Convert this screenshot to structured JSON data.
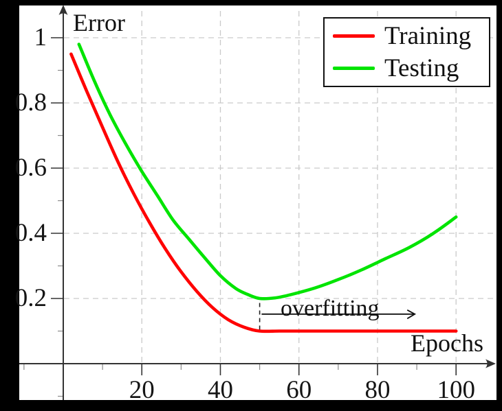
{
  "figure": {
    "error_axis_label": "Error",
    "epochs_axis_label": "Epochs",
    "annotation_label": "overfitting"
  },
  "legend": {
    "position": "top-right",
    "items": [
      {
        "label": "Training",
        "color": "#ff0000"
      },
      {
        "label": "Testing",
        "color": "#00e400"
      }
    ]
  },
  "colors": {
    "training": "#ff0000",
    "testing": "#00e400",
    "grid": "#c9c9c9",
    "axis": "#333333",
    "minor_tick": "#8a8a8a",
    "text": "#111111",
    "surface": "#ffffff",
    "frame": "#000000"
  },
  "chart_data": {
    "type": "line",
    "title": "",
    "xlabel": "Epochs",
    "ylabel": "Error",
    "xlim": [
      -11,
      110
    ],
    "ylim": [
      -0.11,
      1.1
    ],
    "grid": "dashed major",
    "legend_position": "top-right",
    "x_ticks_major": [
      20,
      40,
      60,
      80,
      100
    ],
    "x_tick_labels": [
      "20",
      "40",
      "60",
      "80",
      "100"
    ],
    "x_ticks_minor": [
      -10,
      10,
      30,
      50,
      70,
      90
    ],
    "y_ticks_major": [
      0.2,
      0.4,
      0.6,
      0.8,
      1
    ],
    "y_tick_labels": [
      "0.2",
      "0.4",
      "0.6",
      "0.8",
      "1"
    ],
    "y_ticks_minor": [
      -0.1,
      0.1,
      0.3,
      0.5,
      0.7,
      0.9
    ],
    "series": [
      {
        "name": "Training",
        "color": "#ff0000",
        "points": [
          [
            2,
            0.95
          ],
          [
            6,
            0.835
          ],
          [
            10,
            0.725
          ],
          [
            14,
            0.617
          ],
          [
            18,
            0.52
          ],
          [
            22,
            0.432
          ],
          [
            26,
            0.352
          ],
          [
            30,
            0.282
          ],
          [
            34,
            0.222
          ],
          [
            38,
            0.172
          ],
          [
            42,
            0.135
          ],
          [
            46,
            0.112
          ],
          [
            50,
            0.1
          ],
          [
            55,
            0.1
          ],
          [
            60,
            0.1
          ],
          [
            70,
            0.1
          ],
          [
            80,
            0.1
          ],
          [
            90,
            0.1
          ],
          [
            100,
            0.1
          ]
        ]
      },
      {
        "name": "Testing",
        "color": "#00e400",
        "points": [
          [
            4,
            0.98
          ],
          [
            8,
            0.865
          ],
          [
            12,
            0.762
          ],
          [
            16,
            0.672
          ],
          [
            20,
            0.59
          ],
          [
            24,
            0.515
          ],
          [
            28,
            0.44
          ],
          [
            32,
            0.382
          ],
          [
            36,
            0.325
          ],
          [
            40,
            0.27
          ],
          [
            44,
            0.23
          ],
          [
            47,
            0.212
          ],
          [
            50,
            0.2
          ],
          [
            54,
            0.202
          ],
          [
            58,
            0.212
          ],
          [
            64,
            0.232
          ],
          [
            70,
            0.258
          ],
          [
            76,
            0.288
          ],
          [
            82,
            0.322
          ],
          [
            88,
            0.356
          ],
          [
            94,
            0.398
          ],
          [
            100,
            0.45
          ]
        ]
      }
    ],
    "annotations": [
      {
        "type": "dashed-vline",
        "x": 50,
        "y_from": 0.1,
        "y_to": 0.2
      },
      {
        "type": "arrow",
        "text": "overfitting",
        "y": 0.152,
        "x_from": 50.5,
        "x_to": 89.5
      }
    ]
  }
}
